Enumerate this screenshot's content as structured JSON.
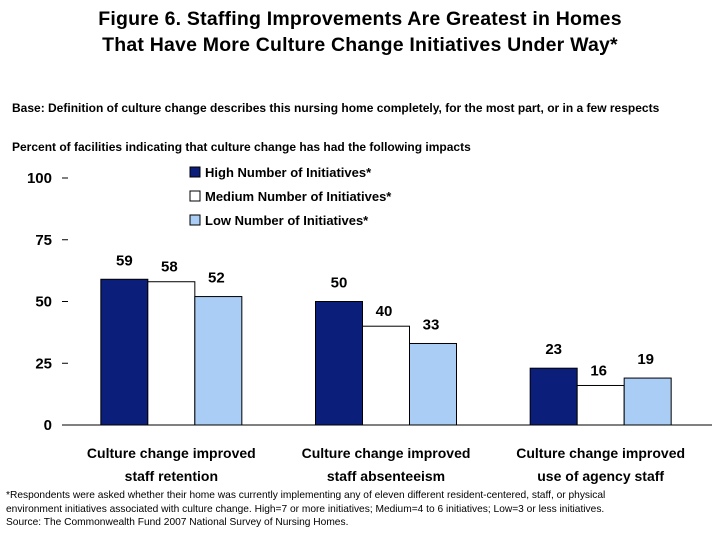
{
  "title": {
    "line1": "Figure 6. Staffing Improvements Are Greatest in Homes",
    "line2": "That Have More Culture Change Initiatives Under Way*"
  },
  "base": "Base: Definition of culture change describes this nursing home completely, for the most part, or in a few respects",
  "subtitle": "Percent of facilities indicating that culture change has had the following impacts",
  "chart_data": {
    "type": "bar",
    "categories": [
      [
        "Culture change improved",
        "staff retention"
      ],
      [
        "Culture change improved",
        "staff absenteeism"
      ],
      [
        "Culture change improved",
        "use of agency staff"
      ]
    ],
    "series": [
      {
        "name": "High Number of Initiatives*",
        "values": [
          59,
          50,
          23
        ],
        "color": "#0b1f7a"
      },
      {
        "name": "Medium Number of Initiatives*",
        "values": [
          58,
          40,
          16
        ],
        "color": "#ffffff"
      },
      {
        "name": "Low Number of Initiatives*",
        "values": [
          52,
          33,
          19
        ],
        "color": "#a9cdf5"
      }
    ],
    "yticks": [
      0,
      25,
      50,
      75,
      100
    ],
    "ylim": [
      0,
      100
    ],
    "legend_position": "top-center",
    "grid": false
  },
  "footnote": {
    "line1": "*Respondents were asked whether their home was currently implementing any of eleven different resident-centered, staff, or physical",
    "line2": "environment initiatives associated with culture change. High=7 or more initiatives; Medium=4 to 6 initiatives; Low=3 or less initiatives.",
    "line3": "Source: The Commonwealth Fund 2007 National Survey of Nursing Homes."
  }
}
